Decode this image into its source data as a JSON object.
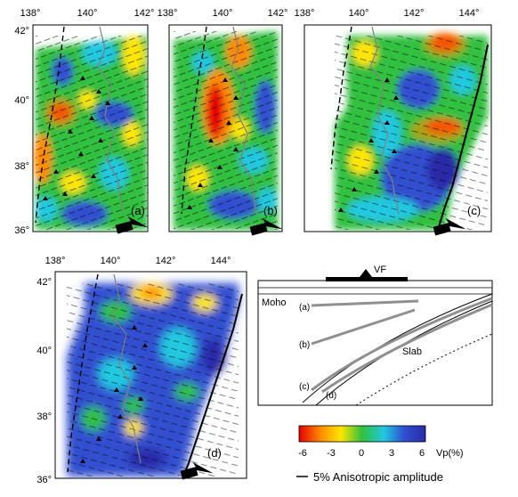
{
  "panels": [
    {
      "id": "a",
      "label": "(a)",
      "lon_ticks": [
        "138°",
        "140°",
        "142°"
      ],
      "lat_ticks": [
        "42°",
        "40°",
        "38°",
        "36°"
      ]
    },
    {
      "id": "b",
      "label": "(b)",
      "lon_ticks": [
        "138°",
        "140°",
        "142°"
      ]
    },
    {
      "id": "c",
      "label": "(c)",
      "lon_ticks": [
        "138°",
        "140°",
        "142°",
        "144°"
      ]
    },
    {
      "id": "d",
      "label": "(d)",
      "lon_ticks": [
        "138°",
        "140°",
        "142°",
        "144°"
      ],
      "lat_ticks": [
        "42°",
        "40°",
        "38°",
        "36°"
      ]
    }
  ],
  "cross_section": {
    "vf_label": "VF",
    "moho_label": "Moho",
    "slab_label": "Slab",
    "depth_labels": [
      "(a)",
      "(b)",
      "(c)",
      "(d)"
    ]
  },
  "colorbar": {
    "ticks": [
      "-6",
      "-3",
      "0",
      "3",
      "6"
    ],
    "unit_label": "Vp(%)",
    "colors": [
      "#e60000",
      "#ff8a00",
      "#ffe600",
      "#30c040",
      "#20c8e0",
      "#3050d0",
      "#2a2aa8"
    ]
  },
  "anisotropy_legend": {
    "label": "5% Anisotropic amplitude"
  },
  "colors": {
    "volcano": "#000000",
    "coast": "#808080",
    "trench": "#000000"
  }
}
